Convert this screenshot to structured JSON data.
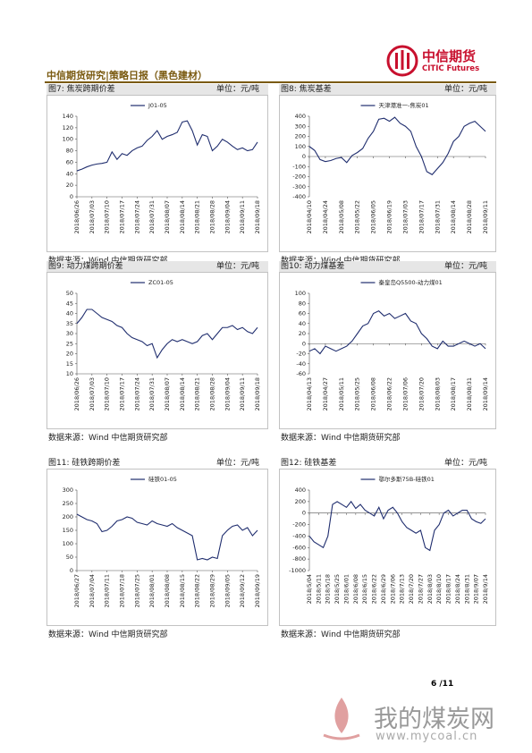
{
  "header": {
    "title": "中信期货研究|策略日报（黑色建材）",
    "logo_cn": "中信期货",
    "logo_en": "CITIC Futures"
  },
  "chart_data": [
    {
      "type": "line",
      "title": "图7: 焦炭跨期价差",
      "unit": "单位：元/吨",
      "source": "数据来源：Wind 中信期货研究部",
      "categories": [
        "2018/06/26",
        null,
        null,
        "2018/07/03",
        null,
        null,
        "2018/07/10",
        null,
        null,
        "2018/07/17",
        null,
        null,
        "2018/07/24",
        null,
        null,
        "2018/07/31",
        null,
        null,
        "2018/08/07",
        null,
        null,
        "2018/08/14",
        null,
        null,
        "2018/08/21",
        null,
        null,
        "2018/08/28",
        null,
        null,
        "2018/09/04",
        null,
        null,
        "2018/09/11",
        null,
        null,
        "2018/09/18"
      ],
      "series": [
        {
          "name": "J01-05",
          "color": "#1f2d6e",
          "values": [
            45,
            48,
            52,
            55,
            57,
            58,
            60,
            78,
            65,
            75,
            72,
            80,
            85,
            88,
            98,
            105,
            115,
            100,
            105,
            108,
            112,
            130,
            132,
            115,
            90,
            108,
            105,
            80,
            88,
            100,
            95,
            88,
            82,
            85,
            80,
            82,
            95
          ]
        }
      ],
      "ylim": [
        0,
        140
      ],
      "yticks": [
        0,
        20,
        40,
        60,
        80,
        100,
        120,
        140
      ]
    },
    {
      "type": "line",
      "title": "图8: 焦炭基差",
      "unit": "单位：元/吨",
      "source": "数据来源：Wind 中信期货研究部",
      "categories": [
        "2018/04/10",
        null,
        null,
        "2018/04/24",
        null,
        null,
        "2018/05/08",
        null,
        null,
        "2018/05/22",
        null,
        null,
        "2018/06/05",
        null,
        null,
        "2018/06/19",
        null,
        null,
        "2018/07/03",
        null,
        null,
        "2018/07/17",
        null,
        null,
        "2018/07/31",
        null,
        null,
        "2018/08/14",
        null,
        null,
        "2018/08/28",
        null,
        null,
        "2018/09/11"
      ],
      "series": [
        {
          "name": "天津港准一-焦炭01",
          "color": "#1f2d6e",
          "values": [
            100,
            60,
            -30,
            -50,
            -40,
            -20,
            -10,
            -60,
            10,
            40,
            80,
            180,
            250,
            370,
            380,
            350,
            390,
            330,
            300,
            250,
            100,
            0,
            -150,
            -180,
            -120,
            -60,
            30,
            150,
            200,
            300,
            330,
            350,
            300,
            250
          ]
        }
      ],
      "ylim": [
        -400,
        400
      ],
      "yticks": [
        -400,
        -300,
        -200,
        -100,
        0,
        100,
        200,
        300,
        400
      ]
    },
    {
      "type": "line",
      "title": "图9: 动力煤跨期价差",
      "unit": "单位：元/吨",
      "source": "数据来源：Wind 中信期货研究部",
      "categories": [
        "2018/06/26",
        null,
        null,
        "2018/07/03",
        null,
        null,
        "2018/07/10",
        null,
        null,
        "2018/07/17",
        null,
        null,
        "2018/07/24",
        null,
        null,
        "2018/07/31",
        null,
        null,
        "2018/08/07",
        null,
        null,
        "2018/08/14",
        null,
        null,
        "2018/08/21",
        null,
        null,
        "2018/08/28",
        null,
        null,
        "2018/09/04",
        null,
        null,
        "2018/09/11",
        null,
        null,
        "2018/09/18"
      ],
      "series": [
        {
          "name": "ZC01-05",
          "color": "#1f2d6e",
          "values": [
            35,
            38,
            42,
            42,
            40,
            38,
            37,
            36,
            34,
            33,
            30,
            28,
            27,
            26,
            24,
            25,
            18,
            22,
            25,
            27,
            26,
            27,
            26,
            25,
            26,
            29,
            30,
            27,
            30,
            33,
            33,
            34,
            32,
            33,
            31,
            30,
            33
          ]
        }
      ],
      "ylim": [
        10,
        50
      ],
      "yticks": [
        10,
        15,
        20,
        25,
        30,
        35,
        40,
        45,
        50
      ]
    },
    {
      "type": "line",
      "title": "图10: 动力煤基差",
      "unit": "单位：元/吨",
      "source": "数据来源：Wind 中信期货研究部",
      "categories": [
        "2018/04/13",
        null,
        null,
        "2018/04/27",
        null,
        null,
        "2018/05/11",
        null,
        null,
        "2018/05/25",
        null,
        null,
        "2018/06/08",
        null,
        null,
        "2018/06/22",
        null,
        null,
        "2018/07/06",
        null,
        null,
        "2018/07/20",
        null,
        null,
        "2018/08/03",
        null,
        null,
        "2018/08/17",
        null,
        null,
        "2018/08/31",
        null,
        null,
        "2018/09/14"
      ],
      "series": [
        {
          "name": "秦皇岛Q5500-动力煤01",
          "color": "#1f2d6e",
          "values": [
            -15,
            -10,
            -20,
            -5,
            -10,
            -15,
            -10,
            -5,
            5,
            20,
            35,
            40,
            60,
            65,
            55,
            60,
            50,
            55,
            60,
            45,
            40,
            20,
            10,
            -5,
            -10,
            5,
            -5,
            -5,
            0,
            5,
            0,
            -5,
            0,
            -10
          ]
        }
      ],
      "ylim": [
        -60,
        100
      ],
      "yticks": [
        -60,
        -40,
        -20,
        0,
        20,
        40,
        60,
        80,
        100
      ]
    },
    {
      "type": "line",
      "title": "图11: 硅铁跨期价差",
      "unit": "单位：元/吨",
      "source": "数据来源：Wind 中信期货研究部",
      "categories": [
        "2018/06/27",
        null,
        null,
        "2018/07/04",
        null,
        null,
        "2018/07/11",
        null,
        null,
        "2018/07/18",
        null,
        null,
        "2018/07/25",
        null,
        null,
        "2018/08/01",
        null,
        null,
        "2018/08/08",
        null,
        null,
        "2018/08/15",
        null,
        null,
        "2018/08/22",
        null,
        null,
        "2018/08/29",
        null,
        null,
        "2018/09/05",
        null,
        null,
        "2018/09/12",
        null,
        null,
        "2018/09/19"
      ],
      "series": [
        {
          "name": "硅铁01-05",
          "color": "#1f2d6e",
          "values": [
            210,
            200,
            190,
            185,
            175,
            145,
            150,
            165,
            185,
            190,
            200,
            195,
            180,
            175,
            170,
            185,
            175,
            170,
            165,
            175,
            160,
            150,
            140,
            130,
            40,
            45,
            40,
            50,
            45,
            130,
            150,
            165,
            170,
            150,
            160,
            130,
            150
          ]
        }
      ],
      "ylim": [
        0,
        300
      ],
      "yticks": [
        0,
        50,
        100,
        150,
        200,
        250,
        300
      ]
    },
    {
      "type": "line",
      "title": "图12: 硅铁基差",
      "unit": "单位：元/吨",
      "source": "数据来源：Wind 中信期货研究部",
      "categories": [
        "2018/5/04",
        null,
        "2018/5/11",
        null,
        "2018/5/18",
        null,
        "2018/5/25",
        null,
        "2018/6/01",
        null,
        "2018/6/08",
        null,
        "2018/6/15",
        null,
        "2018/6/22",
        null,
        "2018/6/29",
        null,
        "2018/7/06",
        null,
        "2018/7/13",
        null,
        "2018/7/20",
        null,
        "2018/7/27",
        null,
        "2018/8/03",
        null,
        "2018/8/10",
        null,
        "2018/8/17",
        null,
        "2018/8/24",
        null,
        "2018/8/31",
        null,
        "2018/9/07",
        null,
        "2018/9/14"
      ],
      "series": [
        {
          "name": "鄂尔多斯75B-硅铁01",
          "color": "#1f2d6e",
          "values": [
            -400,
            -500,
            -550,
            -600,
            -400,
            150,
            200,
            150,
            100,
            200,
            80,
            150,
            50,
            0,
            -50,
            100,
            -100,
            50,
            100,
            0,
            -150,
            -250,
            -300,
            -350,
            -300,
            -600,
            -650,
            -300,
            -200,
            0,
            50,
            -50,
            0,
            50,
            50,
            -100,
            -150,
            -180,
            -100
          ]
        }
      ],
      "ylim": [
        -1000,
        400
      ],
      "yticks": [
        -1000,
        -800,
        -600,
        -400,
        -200,
        0,
        200,
        400
      ]
    }
  ],
  "footer": {
    "page": "6 /11"
  },
  "watermark": {
    "cn": "我的煤炭网",
    "url": "www.mycoal.cn"
  }
}
